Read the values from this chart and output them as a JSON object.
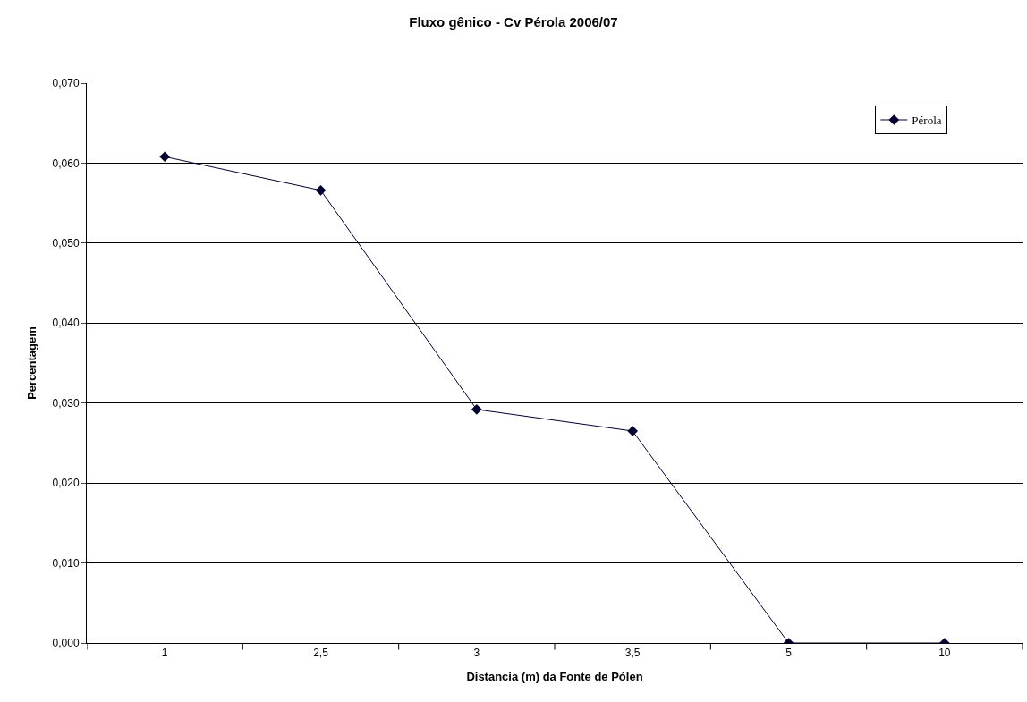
{
  "chart_data": {
    "type": "line",
    "title": "Fluxo gênico - Cv Pérola 2006/07",
    "xlabel": "Distancia (m) da Fonte de Pólen",
    "ylabel": "Percentagem",
    "categories": [
      "1",
      "2,5",
      "3",
      "3,5",
      "5",
      "10"
    ],
    "series": [
      {
        "name": "Pérola",
        "color": "#000033",
        "values": [
          0.0608,
          0.0566,
          0.0292,
          0.0265,
          0,
          0
        ]
      }
    ],
    "ylim": [
      0,
      0.07
    ],
    "yticks": [
      {
        "value": 0,
        "label": "0,000"
      },
      {
        "value": 0.01,
        "label": "0,010"
      },
      {
        "value": 0.02,
        "label": "0,020"
      },
      {
        "value": 0.03,
        "label": "0,030"
      },
      {
        "value": 0.04,
        "label": "0,040"
      },
      {
        "value": 0.05,
        "label": "0,050"
      },
      {
        "value": 0.06,
        "label": "0,060"
      },
      {
        "value": 0.07,
        "label": "0,070"
      }
    ],
    "grid": "y",
    "legend": "top right",
    "marker": "diamond",
    "line_style": "solid"
  }
}
